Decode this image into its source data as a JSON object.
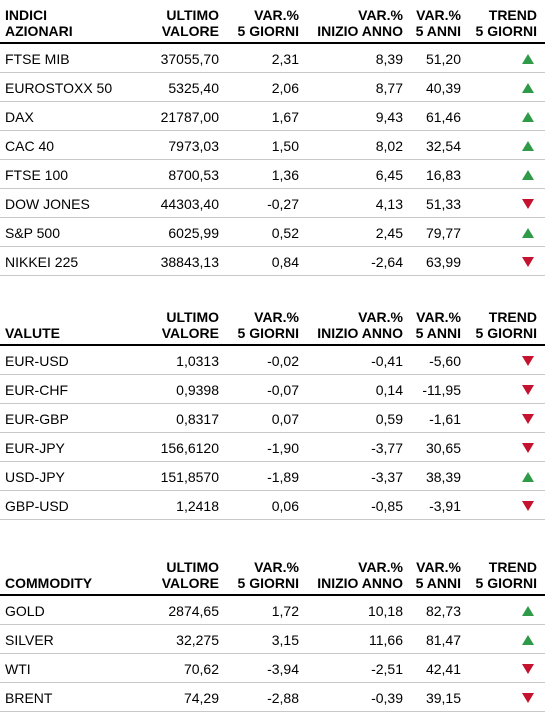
{
  "colors": {
    "up": "#2f9a48",
    "down": "#c4122f",
    "rule": "#c8c8c8"
  },
  "tables": [
    {
      "headers": [
        "INDICI\nAZIONARI",
        "ULTIMO\nVALORE",
        "VAR.%\n5 GIORNI",
        "VAR.%\nINIZIO ANNO",
        "VAR.%\n5 ANNI",
        "TREND\n5 GIORNI"
      ],
      "rows": [
        {
          "name": "FTSE MIB",
          "value": "37055,70",
          "var5d": "2,31",
          "varYtd": "8,39",
          "var5y": "51,20",
          "trend": "up"
        },
        {
          "name": "EUROSTOXX 50",
          "value": "5325,40",
          "var5d": "2,06",
          "varYtd": "8,77",
          "var5y": "40,39",
          "trend": "up"
        },
        {
          "name": "DAX",
          "value": "21787,00",
          "var5d": "1,67",
          "varYtd": "9,43",
          "var5y": "61,46",
          "trend": "up"
        },
        {
          "name": "CAC 40",
          "value": "7973,03",
          "var5d": "1,50",
          "varYtd": "8,02",
          "var5y": "32,54",
          "trend": "up"
        },
        {
          "name": "FTSE 100",
          "value": "8700,53",
          "var5d": "1,36",
          "varYtd": "6,45",
          "var5y": "16,83",
          "trend": "up"
        },
        {
          "name": "DOW JONES",
          "value": "44303,40",
          "var5d": "-0,27",
          "varYtd": "4,13",
          "var5y": "51,33",
          "trend": "down"
        },
        {
          "name": "S&P 500",
          "value": "6025,99",
          "var5d": "0,52",
          "varYtd": "2,45",
          "var5y": "79,77",
          "trend": "up"
        },
        {
          "name": "NIKKEI 225",
          "value": "38843,13",
          "var5d": "0,84",
          "varYtd": "-2,64",
          "var5y": "63,99",
          "trend": "down"
        }
      ]
    },
    {
      "headers": [
        "VALUTE",
        "ULTIMO\nVALORE",
        "VAR.%\n5 GIORNI",
        "VAR.%\nINIZIO ANNO",
        "VAR.%\n5 ANNI",
        "TREND\n5 GIORNI"
      ],
      "rows": [
        {
          "name": "EUR-USD",
          "value": "1,0313",
          "var5d": "-0,02",
          "varYtd": "-0,41",
          "var5y": "-5,60",
          "trend": "down"
        },
        {
          "name": "EUR-CHF",
          "value": "0,9398",
          "var5d": "-0,07",
          "varYtd": "0,14",
          "var5y": "-11,95",
          "trend": "down"
        },
        {
          "name": "EUR-GBP",
          "value": "0,8317",
          "var5d": "0,07",
          "varYtd": "0,59",
          "var5y": "-1,61",
          "trend": "down"
        },
        {
          "name": "EUR-JPY",
          "value": "156,6120",
          "var5d": "-1,90",
          "varYtd": "-3,77",
          "var5y": "30,65",
          "trend": "down"
        },
        {
          "name": "USD-JPY",
          "value": "151,8570",
          "var5d": "-1,89",
          "varYtd": "-3,37",
          "var5y": "38,39",
          "trend": "up"
        },
        {
          "name": "GBP-USD",
          "value": "1,2418",
          "var5d": "0,06",
          "varYtd": "-0,85",
          "var5y": "-3,91",
          "trend": "down"
        }
      ]
    },
    {
      "headers": [
        "COMMODITY",
        "ULTIMO\nVALORE",
        "VAR.%\n5 GIORNI",
        "VAR.%\nINIZIO ANNO",
        "VAR.%\n5 ANNI",
        "TREND\n5 GIORNI"
      ],
      "rows": [
        {
          "name": "GOLD",
          "value": "2874,65",
          "var5d": "1,72",
          "varYtd": "10,18",
          "var5y": "82,73",
          "trend": "up"
        },
        {
          "name": "SILVER",
          "value": "32,275",
          "var5d": "3,15",
          "varYtd": "11,66",
          "var5y": "81,47",
          "trend": "up"
        },
        {
          "name": "WTI",
          "value": "70,62",
          "var5d": "-3,94",
          "varYtd": "-2,51",
          "var5y": "42,41",
          "trend": "down"
        },
        {
          "name": "BRENT",
          "value": "74,29",
          "var5d": "-2,88",
          "varYtd": "-0,39",
          "var5y": "39,15",
          "trend": "down"
        }
      ]
    }
  ]
}
